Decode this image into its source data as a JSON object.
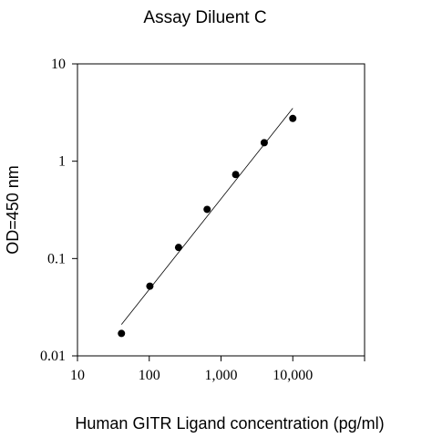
{
  "chart_data": {
    "type": "scatter",
    "title": "Assay Diluent C",
    "xlabel": "Human GITR Ligand concentration (pg/ml)",
    "ylabel": "OD=450 nm",
    "xscale": "log",
    "yscale": "log",
    "xlim": [
      10,
      100000
    ],
    "ylim": [
      0.01,
      10
    ],
    "xticks": [
      10,
      100,
      1000,
      10000,
      100000
    ],
    "xtick_labels": [
      "10",
      "100",
      "1,000",
      "10,000",
      ""
    ],
    "yticks": [
      0.01,
      0.1,
      1,
      10
    ],
    "ytick_labels": [
      "0.01",
      "0.1",
      "1",
      "10"
    ],
    "grid": false,
    "series": [
      {
        "x": [
          41,
          102,
          256,
          640,
          1600,
          4000,
          10000
        ],
        "y": [
          0.017,
          0.052,
          0.13,
          0.32,
          0.73,
          1.55,
          2.75
        ]
      }
    ],
    "fit_line": {
      "x": [
        41,
        10000
      ],
      "y": [
        0.021,
        3.5
      ]
    }
  }
}
